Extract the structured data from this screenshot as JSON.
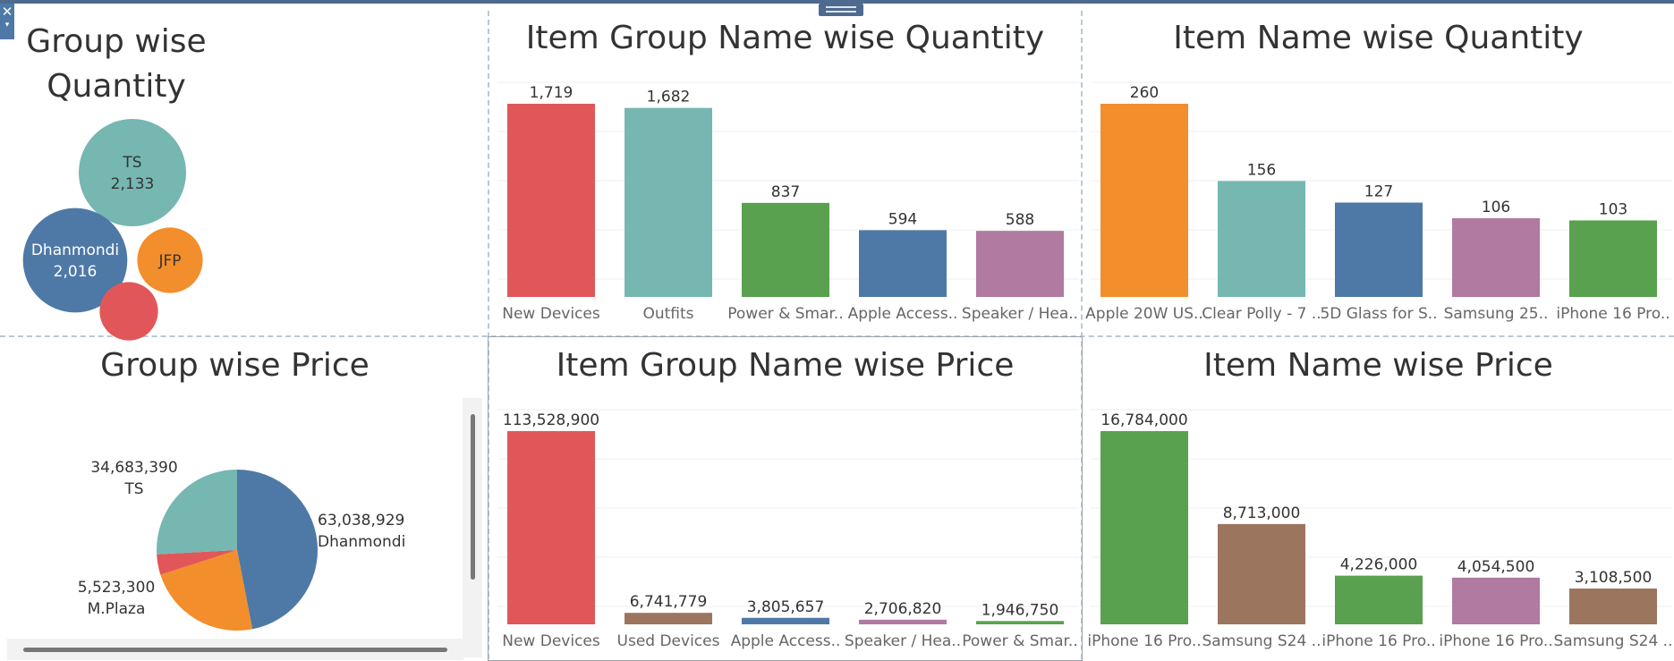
{
  "panels": {
    "group_qty_title": "Group wise\nQuantity",
    "group_price_title": "Group wise Price",
    "igqty_title": "Item Group Name wise Quantity",
    "inqty_title": "Item Name wise Quantity",
    "igprice_title": "Item Group Name wise Price",
    "inprice_title": "Item Name wise Price"
  },
  "colors": {
    "blue": "#4e79a7",
    "orange": "#f28e2b",
    "red": "#e15759",
    "teal": "#76b7b2",
    "green": "#59a14f",
    "purple": "#b07aa1",
    "brown": "#9c755f"
  },
  "icons": {
    "close": "close-icon",
    "dropdown": "chevron-down-icon",
    "grip": "drag-handle-icon"
  },
  "chart_data": [
    {
      "id": "group_qty",
      "type": "bubble",
      "title": "Group wise\nQuantity",
      "items": [
        {
          "label": "TS",
          "value": 2133,
          "value_label": "2,133",
          "color": "#76b7b2",
          "show_value": true
        },
        {
          "label": "Dhanmondi",
          "value": 2016,
          "value_label": "2,016",
          "color": "#4e79a7",
          "show_value": true
        },
        {
          "label": "JFP",
          "value": 1150,
          "value_label": "",
          "color": "#f28e2b",
          "show_value": false
        },
        {
          "label": "",
          "value": 300,
          "value_label": "",
          "color": "#e15759",
          "show_value": false
        }
      ]
    },
    {
      "id": "ig_qty",
      "type": "bar",
      "title": "Item Group Name wise Quantity",
      "categories": [
        "New Devices",
        "Outfits",
        "Power & Smar..",
        "Apple Access..",
        "Speaker / Hea.."
      ],
      "values": [
        1719,
        1682,
        837,
        594,
        588
      ],
      "value_labels": [
        "1,719",
        "1,682",
        "837",
        "594",
        "588"
      ],
      "colors": [
        "#e15759",
        "#76b7b2",
        "#59a14f",
        "#4e79a7",
        "#b07aa1"
      ],
      "ylim": [
        0,
        2000
      ]
    },
    {
      "id": "in_qty",
      "type": "bar",
      "title": "Item Name wise Quantity",
      "categories": [
        "Apple 20W US..",
        "Clear Polly - 7 ..",
        "5D Glass for S..",
        "Samsung 25..",
        "iPhone 16 Pro.."
      ],
      "values": [
        260,
        156,
        127,
        106,
        103
      ],
      "value_labels": [
        "260",
        "156",
        "127",
        "106",
        "103"
      ],
      "colors": [
        "#f28e2b",
        "#76b7b2",
        "#4e79a7",
        "#b07aa1",
        "#59a14f"
      ],
      "ylim": [
        0,
        300
      ]
    },
    {
      "id": "group_price",
      "type": "pie",
      "title": "Group wise Price",
      "slices": [
        {
          "label": "Dhanmondi",
          "value": 63038929,
          "value_label": "63,038,929",
          "color": "#4e79a7"
        },
        {
          "label": "",
          "value": 31000000,
          "value_label": "",
          "color": "#f28e2b"
        },
        {
          "label": "M.Plaza",
          "value": 5523300,
          "value_label": "5,523,300",
          "color": "#e15759"
        },
        {
          "label": "TS",
          "value": 34683390,
          "value_label": "34,683,390",
          "color": "#76b7b2"
        }
      ]
    },
    {
      "id": "ig_price",
      "type": "bar",
      "title": "Item Group Name wise Price",
      "categories": [
        "New Devices",
        "Used Devices",
        "Apple Access..",
        "Speaker / Hea..",
        "Power & Smar.."
      ],
      "values": [
        113528900,
        6741779,
        3805657,
        2706820,
        1946750
      ],
      "value_labels": [
        "113,528,900",
        "6,741,779",
        "3,805,657",
        "2,706,820",
        "1,946,750"
      ],
      "colors": [
        "#e15759",
        "#9c755f",
        "#4e79a7",
        "#b07aa1",
        "#59a14f"
      ],
      "ylim": [
        0,
        120000000
      ]
    },
    {
      "id": "in_price",
      "type": "bar",
      "title": "Item Name wise Price",
      "categories": [
        "iPhone 16 Pro..",
        "Samsung S24 ..",
        "iPhone 16 Pro..",
        "iPhone 16 Pro..",
        "Samsung S24 .."
      ],
      "values": [
        16784000,
        8713000,
        4226000,
        4054500,
        3108500
      ],
      "value_labels": [
        "16,784,000",
        "8,713,000",
        "4,226,000",
        "4,054,500",
        "3,108,500"
      ],
      "colors": [
        "#59a14f",
        "#9c755f",
        "#59a14f",
        "#b07aa1",
        "#9c755f"
      ],
      "ylim": [
        0,
        18000000
      ]
    }
  ]
}
